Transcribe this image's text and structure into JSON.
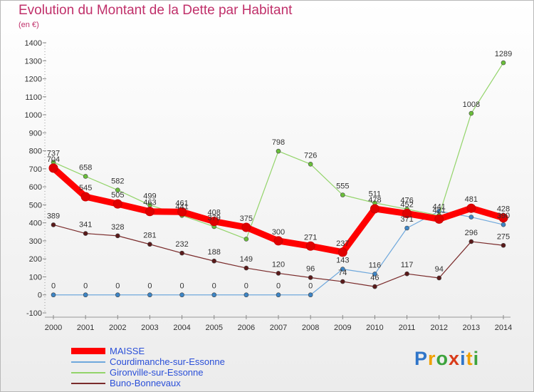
{
  "header": {
    "title": "Evolution du Montant de la Dette par Habitant",
    "unit": "(en €)"
  },
  "chart_data": {
    "type": "line",
    "x": [
      "2000",
      "2001",
      "2002",
      "2003",
      "2004",
      "2005",
      "2006",
      "2007",
      "2008",
      "2009",
      "2010",
      "2011",
      "2012",
      "2013",
      "2014"
    ],
    "ylim": [
      -100,
      1400
    ],
    "yticks": [
      -100,
      0,
      100,
      200,
      300,
      400,
      500,
      600,
      700,
      800,
      900,
      1000,
      1100,
      1200,
      1300,
      1400
    ],
    "grid": false,
    "legend_position": "bottom-left",
    "series": [
      {
        "name": "MAISSE",
        "color": "#ff0000",
        "marker_color": "#e00000",
        "line_width": 9,
        "values": [
          704,
          545,
          505,
          463,
          461,
          408,
          375,
          300,
          271,
          237,
          478,
          452,
          421,
          481,
          428
        ],
        "labels": [
          "704",
          "545",
          "505",
          "463",
          "461",
          "408",
          "375",
          "300",
          "271",
          "237",
          "478",
          "452",
          "421",
          "481",
          "428"
        ]
      },
      {
        "name": "Courdimanche-sur-Essonne",
        "color": "#6fa8dc",
        "marker_color": "#3d85c6",
        "line_width": 1.2,
        "values": [
          0,
          0,
          0,
          0,
          0,
          0,
          0,
          0,
          0,
          143,
          116,
          371,
          465,
          432,
          390
        ],
        "labels": [
          "0",
          "0",
          "0",
          "0",
          "0",
          "0",
          "0",
          "0",
          "0",
          "143",
          "116",
          "371",
          "",
          "",
          "390"
        ]
      },
      {
        "name": "Gironville-sur-Essonne",
        "color": "#93d46a",
        "marker_color": "#6abf3a",
        "line_width": 1.2,
        "values": [
          737,
          658,
          582,
          499,
          441,
          379,
          310,
          798,
          726,
          555,
          511,
          476,
          441,
          1008,
          1289
        ],
        "labels": [
          "737",
          "658",
          "582",
          "499",
          "441",
          "379",
          "",
          "798",
          "726",
          "555",
          "511",
          "476",
          "441",
          "1008",
          "1289"
        ]
      },
      {
        "name": "Buno-Bonnevaux",
        "color": "#7a2b2b",
        "marker_color": "#5a1a1a",
        "line_width": 1.2,
        "values": [
          389,
          341,
          328,
          281,
          232,
          188,
          149,
          120,
          96,
          74,
          46,
          117,
          94,
          296,
          275
        ],
        "labels": [
          "389",
          "341",
          "328",
          "281",
          "232",
          "188",
          "149",
          "120",
          "96",
          "74",
          "46",
          "117",
          "94",
          "296",
          "275"
        ]
      }
    ]
  },
  "brand": {
    "letters": [
      "P",
      "r",
      "o",
      "x",
      "i",
      "t",
      "i"
    ],
    "colors": [
      "#2f75c9",
      "#f0a000",
      "#3ca33c",
      "#d93b1a",
      "#2f75c9",
      "#f0a000",
      "#3ca33c"
    ]
  }
}
